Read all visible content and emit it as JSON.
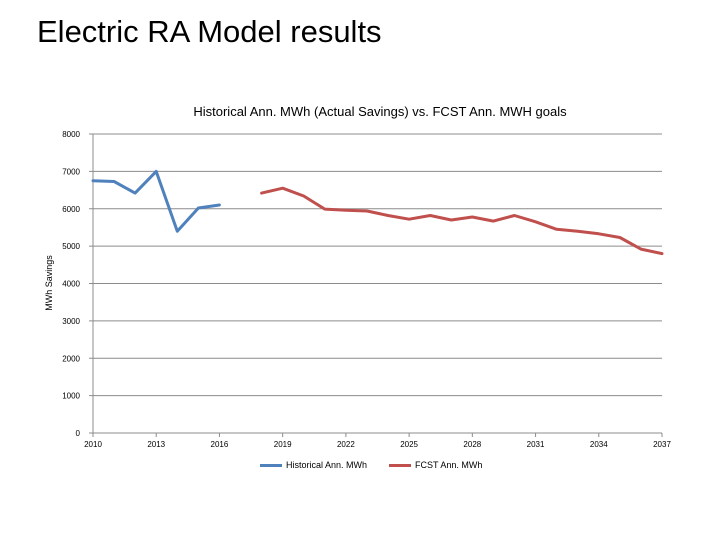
{
  "slide": {
    "title": "Electric RA Model results"
  },
  "chart_data": {
    "type": "line",
    "title": "Historical Ann. MWh (Actual Savings) vs. FCST Ann. MWH goals",
    "xlabel": "",
    "ylabel": "MWh Savings",
    "xlim": [
      2010,
      2037
    ],
    "ylim": [
      0,
      8000
    ],
    "x_ticks": [
      "2010",
      "2013",
      "2016",
      "2019",
      "2022",
      "2025",
      "2028",
      "2031",
      "2034",
      "2037"
    ],
    "y_ticks": [
      "0",
      "1000",
      "2000",
      "3000",
      "4000",
      "5000",
      "6000",
      "7000",
      "8000"
    ],
    "grid": true,
    "legend_position": "bottom",
    "series": [
      {
        "name": "Historical Ann. MWh",
        "color": "#4f81bd",
        "x": [
          2010,
          2011,
          2012,
          2013,
          2014,
          2015,
          2016
        ],
        "y": [
          6750,
          6730,
          6420,
          7000,
          5400,
          6020,
          6100
        ]
      },
      {
        "name": "FCST Ann. MWh",
        "color": "#c0504d",
        "x": [
          2018,
          2019,
          2020,
          2021,
          2022,
          2023,
          2024,
          2025,
          2026,
          2027,
          2028,
          2029,
          2030,
          2031,
          2032,
          2033,
          2034,
          2035,
          2036,
          2037
        ],
        "y": [
          6420,
          6550,
          6340,
          5990,
          5960,
          5940,
          5820,
          5720,
          5820,
          5700,
          5780,
          5670,
          5820,
          5650,
          5450,
          5400,
          5330,
          5230,
          4920,
          4800
        ]
      }
    ]
  }
}
